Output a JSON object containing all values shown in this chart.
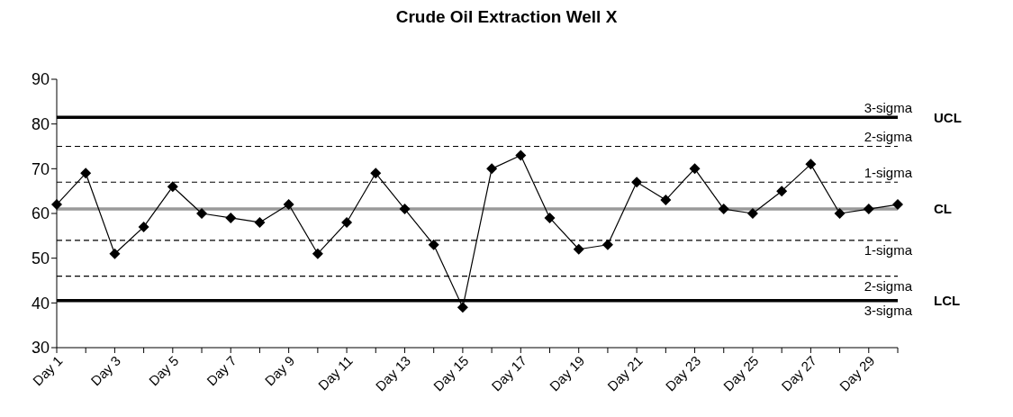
{
  "chart_data": {
    "type": "line",
    "title": "Crude Oil Extraction Well X",
    "categories": [
      "Day 1",
      null,
      "Day 3",
      null,
      "Day 5",
      null,
      "Day 7",
      null,
      "Day 9",
      null,
      "Day 11",
      null,
      "Day 13",
      null,
      "Day 15",
      null,
      "Day 17",
      null,
      "Day 19",
      null,
      "Day 21",
      null,
      "Day 23",
      null,
      "Day 25",
      null,
      "Day 27",
      null,
      "Day 29",
      null
    ],
    "series": [
      {
        "color": "#000000",
        "values": [
          62,
          69,
          51,
          57,
          66,
          60,
          59,
          58,
          62,
          51,
          58,
          69,
          61,
          53,
          39,
          70,
          73,
          59,
          52,
          53,
          67,
          63,
          70,
          61,
          60,
          65,
          71,
          60,
          61,
          62
        ]
      }
    ],
    "ylim": [
      30,
      90
    ],
    "yticks": [
      30,
      40,
      50,
      60,
      70,
      80,
      90
    ],
    "grid": false,
    "legend": false,
    "marker": "diamond",
    "line_style": "solid",
    "ref_lines": [
      {
        "axis": "y",
        "value": 81.5,
        "label": "UCL",
        "color": "#000000",
        "line_style": "solid"
      },
      {
        "axis": "y",
        "value": 75,
        "label": "2-sigma",
        "color": "#000000",
        "line_style": "dashed"
      },
      {
        "axis": "y",
        "value": 67,
        "label": "1-sigma",
        "color": "#000000",
        "line_style": "dashed"
      },
      {
        "axis": "y",
        "value": 61,
        "label": "CL",
        "color": "#999999",
        "line_style": "solid"
      },
      {
        "axis": "y",
        "value": 54,
        "label": "1-sigma",
        "color": "#000000",
        "line_style": "dashed"
      },
      {
        "axis": "y",
        "value": 46,
        "label": "2-sigma",
        "color": "#000000",
        "line_style": "dashed"
      },
      {
        "axis": "y",
        "value": 40.5,
        "label": "LCL",
        "color": "#000000",
        "line_style": "solid"
      }
    ],
    "annotations": [
      "3-sigma",
      "3-sigma"
    ]
  }
}
